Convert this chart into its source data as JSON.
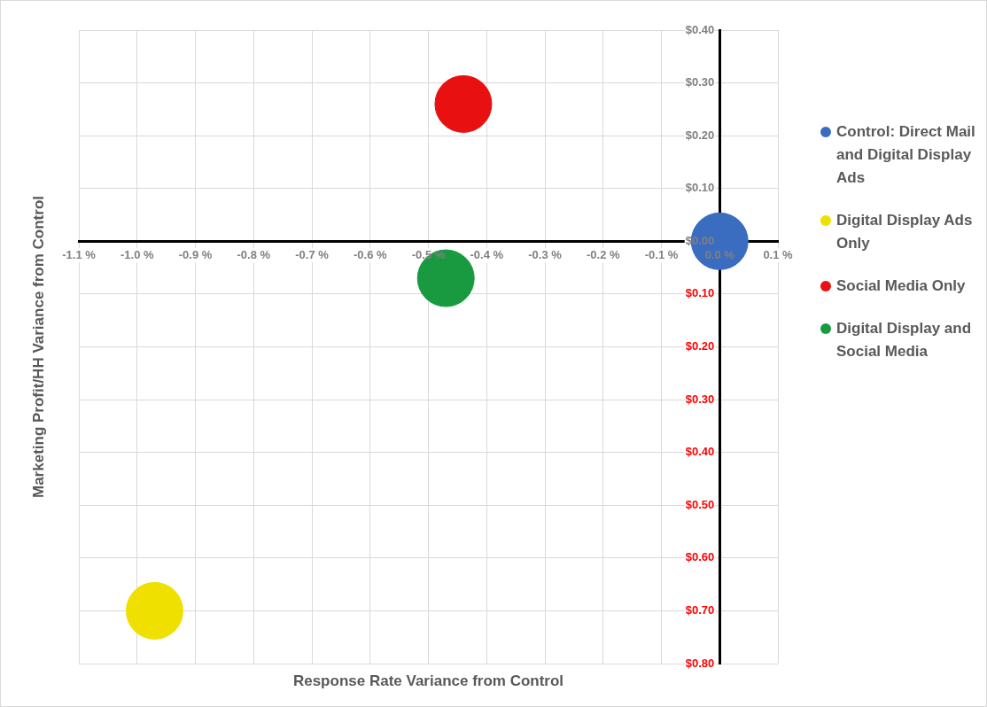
{
  "chart_data": {
    "type": "bubble",
    "xlabel": "Response Rate Variance from Control",
    "ylabel": "Marketing Profit/HH Variance from Control",
    "series": [
      {
        "name": "Control: Direct Mail and Digital Display Ads",
        "color": "#3a6cc0",
        "x": [
          0.0
        ],
        "values": [
          0.0
        ],
        "sizes": [
          1
        ]
      },
      {
        "name": "Digital Display Ads Only",
        "color": "#f0e000",
        "x": [
          -0.97
        ],
        "values": [
          -0.7
        ],
        "sizes": [
          1
        ]
      },
      {
        "name": "Social Media Only",
        "color": "#e81010",
        "x": [
          -0.44
        ],
        "values": [
          0.26
        ],
        "sizes": [
          1
        ]
      },
      {
        "name": "Digital Display and Social Media",
        "color": "#1a9a40",
        "x": [
          -0.47
        ],
        "values": [
          -0.07
        ],
        "sizes": [
          1
        ]
      }
    ],
    "xlim": [
      -1.1,
      0.1
    ],
    "xticks": [
      {
        "value": -1.1,
        "label": "-1.1 %"
      },
      {
        "value": -1.0,
        "label": "-1.0 %"
      },
      {
        "value": -0.9,
        "label": "-0.9 %"
      },
      {
        "value": -0.8,
        "label": "-0.8 %"
      },
      {
        "value": -0.7,
        "label": "-0.7 %"
      },
      {
        "value": -0.6,
        "label": "-0.6 %"
      },
      {
        "value": -0.5,
        "label": "-0.5 %"
      },
      {
        "value": -0.4,
        "label": "-0.4 %"
      },
      {
        "value": -0.3,
        "label": "-0.3 %"
      },
      {
        "value": -0.2,
        "label": "-0.2 %"
      },
      {
        "value": -0.1,
        "label": "-0.1 %"
      },
      {
        "value": 0.0,
        "label": "0.0 %"
      },
      {
        "value": 0.1,
        "label": "0.1 %"
      }
    ],
    "ylim": [
      -0.8,
      0.4
    ],
    "yticks": [
      {
        "value": 0.4,
        "label": "$0.40"
      },
      {
        "value": 0.3,
        "label": "$0.30"
      },
      {
        "value": 0.2,
        "label": "$0.20"
      },
      {
        "value": 0.1,
        "label": "$0.10"
      },
      {
        "value": 0.0,
        "label": "$0.00"
      },
      {
        "value": -0.1,
        "label": "$0.10"
      },
      {
        "value": -0.2,
        "label": "$0.20"
      },
      {
        "value": -0.3,
        "label": "$0.30"
      },
      {
        "value": -0.4,
        "label": "$0.40"
      },
      {
        "value": -0.5,
        "label": "$0.50"
      },
      {
        "value": -0.6,
        "label": "$0.60"
      },
      {
        "value": -0.7,
        "label": "$0.70"
      },
      {
        "value": -0.8,
        "label": "$0.80"
      }
    ],
    "grid": true,
    "legend": "right"
  }
}
